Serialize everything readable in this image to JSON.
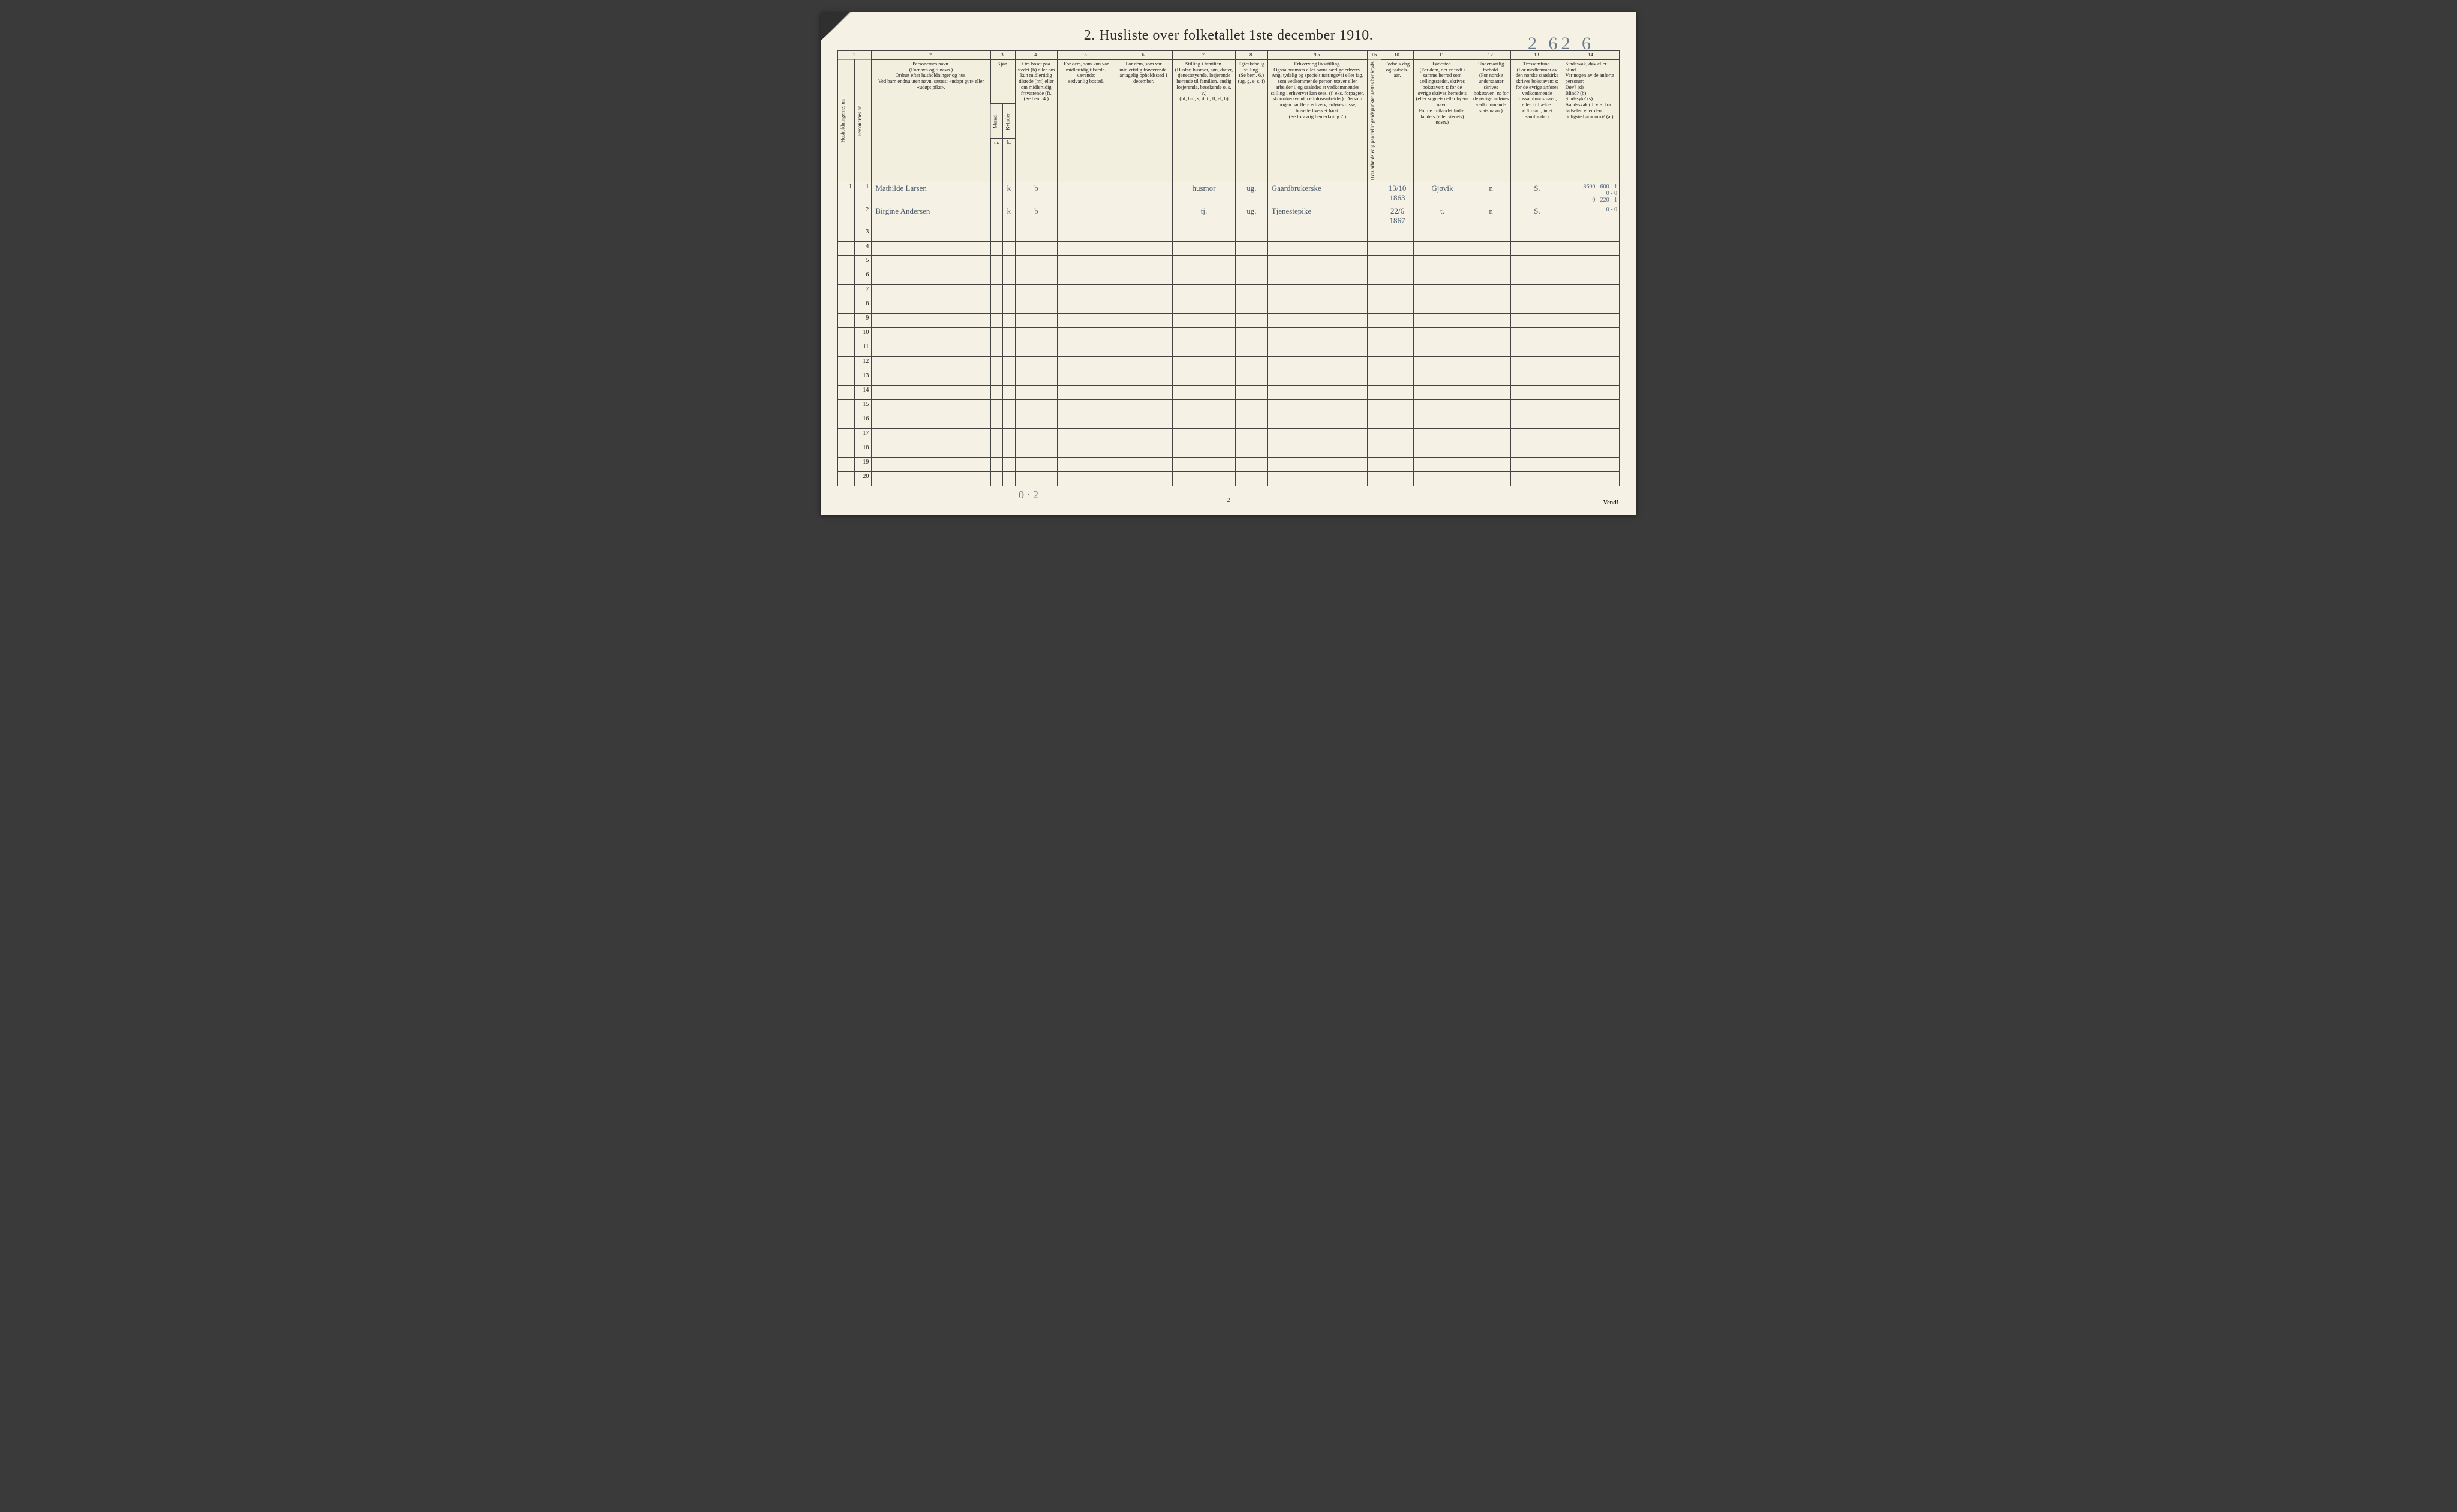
{
  "page": {
    "title": "2.  Husliste over folketallet 1ste december 1910.",
    "hand_topright": "2 62 6",
    "hand_bottom": "0 · 2",
    "page_no": "2",
    "vend": "Vend!",
    "background_color": "#f5f1e4",
    "ink_color": "#222222",
    "handwriting_color": "#6b7a8a",
    "border_color": "#444444"
  },
  "header": {
    "colnos": [
      "1.",
      "2.",
      "3.",
      "4.",
      "5.",
      "6.",
      "7.",
      "8.",
      "9 a.",
      "9 b.",
      "10.",
      "11.",
      "12.",
      "13.",
      "14."
    ],
    "col1_v1": "Husholdningernes nr.",
    "col1_v2": "Personernes nr.",
    "col2": "Personernes navn.\n(Fornavn og tilnavn.)\nOrdnet efter husholdninger og hus.\nVed barn endnu uten navn, sættes: «udøpt gut» eller «udøpt pike».",
    "col3_top": "Kjøn.",
    "col3_m": "Mænd.",
    "col3_k": "Kvinder.",
    "col3_mk_m": "m.",
    "col3_mk_k": "k.",
    "col4": "Om bosat paa stedet (b) eller om kun midlertidig tilstede (mt) eller om midlertidig fraværende (f).\n(Se bem. 4.)",
    "col5": "For dem, som kun var midlertidig tilstede-værende:\nsedvanlig bosted.",
    "col6": "For dem, som var midlertidig fraværende:\nantagelig opholdssted 1 december.",
    "col7": "Stilling i familien.\n(Husfar, husmor, søn, datter, tjenestetyende, losjerende hørende til familien, enslig losjerende, besøkende o. s. v.)\n(hf, hm, s, d, tj, fl, el, b)",
    "col8": "Egteskabelig stilling.\n(Se bem. 6.)\n(ug, g, e, s, f)",
    "col9a": "Erhverv og livsstilling.\nOgsaa husmors eller barns særlige erhverv.\nAngi tydelig og specielt næringsvei eller fag, som vedkommende person utøver eller arbeider i, og saaledes at vedkommendes stilling i erhvervet kan sees, (f. eks. forpagter, skomakersvend, cellulosearbeider). Dersom nogen har flere erhverv, anføres disse, hovederhvervet først.\n(Se forøvrig bemerkning 7.)",
    "col9b": "Hvis arbeidsledig paa tællingstidspunktet sættes her kryds.",
    "col10": "Fødsels-dag og fødsels-aar.",
    "col11": "Fødested.\n(For dem, der er født i samme herred som tællingsstedet, skrives bokstaven: t; for de øvrige skrives herredets (eller sognets) eller byens navn.\nFor de i utlandet fødte: landets (eller stedets) navn.)",
    "col12": "Undersaatlig forhold.\n(For norske undersaatter skrives bokstaven: n; for de øvrige anføres vedkommende stats navn.)",
    "col13": "Trossamfund.\n(For medlemmer av den norske statskirke skrives bokstaven: s; for de øvrige anføres vedkommende trossamfunds navn, eller i tilfælde: «Uttraadt, intet samfund».)",
    "col14": "Sindssvak, døv eller blind.\nVar nogen av de anførte personer:\nDøv? (d)\nBlind? (b)\nSindssyk? (s)\nAandssvak (d. v. s. fra fødselen eller den tidligste barndom)? (a.)"
  },
  "rows": [
    {
      "no": "1",
      "person_no": "1",
      "name": "Mathilde Larsen",
      "m": "",
      "k": "k",
      "bosat": "b",
      "c5": "",
      "c6": "",
      "stilling": "husmor",
      "egte": "ug.",
      "erhverv": "Gaardbrukerske",
      "c9b": "",
      "fodt": "13/10 1863",
      "fodested": "Gjøvik",
      "under": "n",
      "tros": "S.",
      "c14": "8600 - 600 - 1\n0 - 0\n0 - 220 - 1"
    },
    {
      "no": "",
      "person_no": "2",
      "name": "Birgine Andersen",
      "m": "",
      "k": "k",
      "bosat": "b",
      "c5": "",
      "c6": "",
      "stilling": "tj.",
      "egte": "ug.",
      "erhverv": "Tjenestepike",
      "c9b": "",
      "fodt": "22/6 1867",
      "fodested": "t.",
      "under": "n",
      "tros": "S.",
      "c14": "0 - 0"
    }
  ],
  "blank_rows": [
    3,
    4,
    5,
    6,
    7,
    8,
    9,
    10,
    11,
    12,
    13,
    14,
    15,
    16,
    17,
    18,
    19,
    20
  ]
}
